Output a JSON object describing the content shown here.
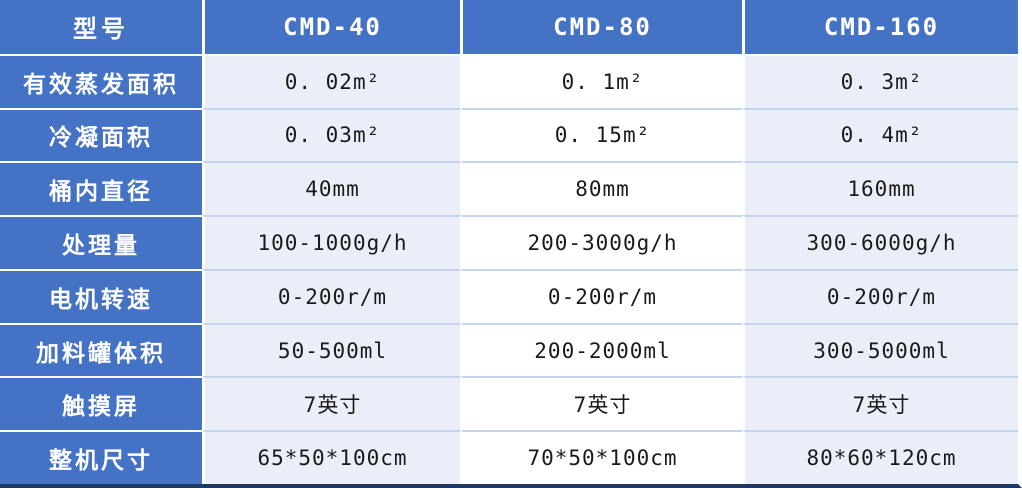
{
  "table": {
    "header": {
      "model_label": "型号",
      "columns": [
        "CMD-40",
        "CMD-80",
        "CMD-160"
      ]
    },
    "rows": [
      {
        "label": "有效蒸发面积",
        "values": [
          "0. 02m²",
          "0. 1m²",
          "0. 3m²"
        ]
      },
      {
        "label": "冷凝面积",
        "values": [
          "0. 03m²",
          "0. 15m²",
          "0. 4m²"
        ]
      },
      {
        "label": "桶内直径",
        "values": [
          "40mm",
          "80mm",
          "160mm"
        ]
      },
      {
        "label": "处理量",
        "values": [
          "100-1000g/h",
          "200-3000g/h",
          "300-6000g/h"
        ]
      },
      {
        "label": "电机转速",
        "values": [
          "0-200r/m",
          "0-200r/m",
          "0-200r/m"
        ]
      },
      {
        "label": "加料罐体积",
        "values": [
          "50-500ml",
          "200-2000ml",
          "300-5000ml"
        ]
      },
      {
        "label": "触摸屏",
        "values": [
          "7英寸",
          "7英寸",
          "7英寸"
        ]
      },
      {
        "label": "整机尺寸",
        "values": [
          "65*50*100cm",
          "70*50*100cm",
          "80*60*120cm"
        ]
      }
    ],
    "colors": {
      "header_blue": "#4472C4",
      "band_lavender": "#EAEEF8",
      "band_white": "#FFFFFF",
      "data_row_divider": "#C5D3EB",
      "white_divider": "#FFFFFF",
      "bottom_border": "#1F3864",
      "header_text": "#FFFFFF",
      "data_text": "#1A1A1A"
    }
  }
}
